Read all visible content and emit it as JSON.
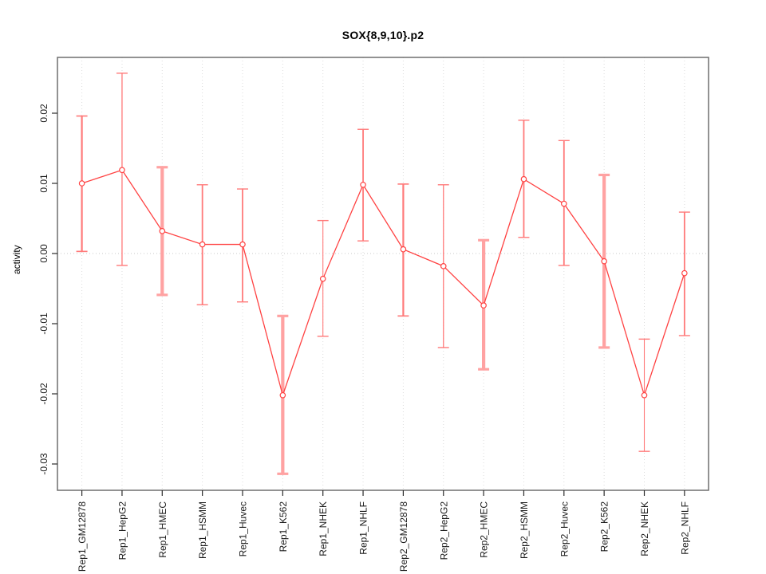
{
  "figure": {
    "title": "SOX{8,9,10}.p2"
  },
  "chart_data": {
    "type": "line",
    "title": "SOX{8,9,10}.p2",
    "xlabel": "",
    "ylabel": "activity",
    "ylim": [
      -0.034,
      0.028
    ],
    "yticks": {
      "values": [
        0.02,
        0.01,
        0,
        -0.01,
        -0.02,
        -0.03
      ],
      "labels": [
        "0.02",
        "0.01",
        "0.00",
        "-0.01",
        "-0.02",
        "-0.03"
      ]
    },
    "grid": {
      "vertical_dotted_per_category": true,
      "horizontal_dotted_at_zero": true
    },
    "legend": "none",
    "marker": "open-circle",
    "categories": [
      "Rep1_GM12878",
      "Rep1_HepG2",
      "Rep1_HMEC",
      "Rep1_HSMM",
      "Rep1_Huvec",
      "Rep1_K562",
      "Rep1_NHEK",
      "Rep1_NHLF",
      "Rep2_GM12878",
      "Rep2_HepG2",
      "Rep2_HMEC",
      "Rep2_HSMM",
      "Rep2_Huvec",
      "Rep2_K562",
      "Rep2_NHEK",
      "Rep2_NHLF"
    ],
    "series": [
      {
        "name": "activity",
        "values": [
          0.01,
          0.0119,
          0.0032,
          0.0013,
          0.0013,
          -0.0202,
          -0.0036,
          0.0098,
          0.0006,
          -0.0018,
          -0.0074,
          0.0106,
          0.0071,
          -0.0011,
          -0.0202,
          -0.0028
        ],
        "error_upper": [
          0.0196,
          0.0257,
          0.0123,
          0.0098,
          0.0092,
          -0.0089,
          0.0047,
          0.0177,
          0.0099,
          0.0098,
          0.0019,
          0.019,
          0.0161,
          0.0112,
          -0.0122,
          0.0059
        ],
        "error_lower": [
          0.0003,
          -0.0017,
          -0.0059,
          -0.0073,
          -0.0069,
          -0.0314,
          -0.0118,
          0.0018,
          -0.0089,
          -0.0134,
          -0.0165,
          0.0023,
          -0.0017,
          -0.0134,
          -0.0282,
          -0.0117
        ],
        "error_bar_widths": [
          2.2,
          1.3,
          4.2,
          1.8,
          1.8,
          4.2,
          1.1,
          1.8,
          2.2,
          1.3,
          4.2,
          1.8,
          1.8,
          4.2,
          1.1,
          1.8
        ]
      }
    ],
    "colors": {
      "line": "#ff4242",
      "error_bar_thin": "#ff7a7a",
      "error_bar_thick": "#ffa2a2",
      "grid": "#dcdcdc",
      "zero_line": "#c9c9c9",
      "box": "#6e6e6e",
      "tick": "#2b2b2b",
      "text": "#1a1a1a"
    }
  }
}
